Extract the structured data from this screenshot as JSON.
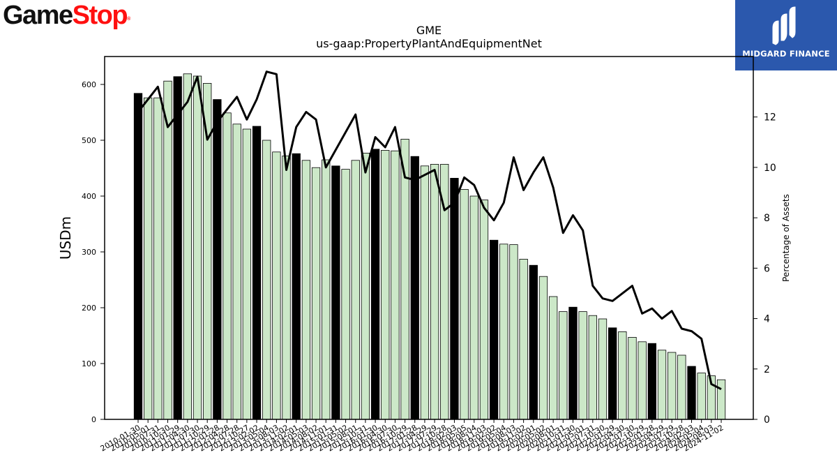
{
  "logos": {
    "left": {
      "part1": "Game",
      "part2": "Stop",
      "mark": "®"
    },
    "right": {
      "text": "MIDGARD FINANCE",
      "icon": "midgard-m-icon"
    }
  },
  "chart_data": {
    "type": "bar",
    "title": "GME",
    "subtitle": "us-gaap:PropertyPlantAndEquipmentNet",
    "ylabel": "USDm",
    "y2label": "Percentage of Assets",
    "ylim": [
      0,
      650
    ],
    "y2lim": [
      0,
      14.4
    ],
    "yticks": [
      0,
      100,
      200,
      300,
      400,
      500,
      600
    ],
    "y2ticks": [
      0,
      2,
      4,
      6,
      8,
      10,
      12
    ],
    "grid": false,
    "colors": {
      "annual_bar": "#000000",
      "quarter_bar": "#cce8c8",
      "line": "#000000"
    },
    "x": [
      "2010-01-30",
      "2010-05-01",
      "2010-07-31",
      "2010-10-30",
      "2011-01-29",
      "2011-04-30",
      "2011-07-30",
      "2011-10-29",
      "2012-01-28",
      "2012-04-28",
      "2012-07-28",
      "2012-10-27",
      "2013-02-02",
      "2013-05-04",
      "2013-08-03",
      "2013-11-02",
      "2014-02-01",
      "2014-05-03",
      "2014-08-02",
      "2014-11-01",
      "2015-01-31",
      "2015-05-02",
      "2015-08-01",
      "2015-10-31",
      "2016-01-30",
      "2016-04-30",
      "2016-07-30",
      "2016-10-29",
      "2017-01-28",
      "2017-04-29",
      "2017-07-29",
      "2017-10-28",
      "2018-02-03",
      "2018-05-05",
      "2018-08-04",
      "2018-11-03",
      "2019-02-02",
      "2019-05-04",
      "2019-08-03",
      "2019-11-02",
      "2020-02-01",
      "2020-05-02",
      "2020-08-01",
      "2020-10-31",
      "2021-01-30",
      "2021-05-01",
      "2021-07-31",
      "2021-10-30",
      "2022-01-29",
      "2022-04-30",
      "2022-07-30",
      "2022-10-29",
      "2023-01-28",
      "2023-04-29",
      "2023-07-29",
      "2023-10-28",
      "2024-02-03",
      "2024-05-04",
      "2024-08-03",
      "2024-11-02"
    ],
    "xticklabels": [
      "2010-01-30",
      "2010-05-01",
      "2010-07-31",
      "2010-10-30",
      "2011-01-29",
      "2011-04-30",
      "2011-07-30",
      "2011-10-29",
      "2012-01-28",
      "2012-04-28",
      "2012-07-28",
      "2012-10-27",
      "2013-02-02",
      "2013-05-04",
      "2013-08-03",
      "2013-11-02",
      "2014-02-01",
      "2014-05-03",
      "2014-08-02",
      "2014-11-01",
      "2015-01-31",
      "2015-05-02",
      "2015-08-01",
      "2015-10-31",
      "2016-01-30",
      "2016-04-30",
      "2016-07-30",
      "2016-10-29",
      "2017-01-28",
      "2017-04-29",
      "2017-07-29",
      "2017-10-28",
      "2018-02-03",
      "2018-05-05",
      "2018-08-04",
      "2018-11-03",
      "2019-02-02",
      "2019-05-04",
      "2019-08-03",
      "2019-11-02",
      "2020-02-01",
      "2020-05-02",
      "2020-08-01",
      "2020-10-31",
      "2021-01-30",
      "2021-05-01",
      "2021-07-31",
      "2021-10-30",
      "2022-01-29",
      "2022-04-30",
      "2022-07-30",
      "2022-10-29",
      "2023-01-28",
      "2023-04-29",
      "2023-07-29",
      "2023-10-28",
      "2024-02-03",
      "2024-05-04",
      "2024-08-03",
      "2024-11-02"
    ],
    "annual": [
      true,
      false,
      false,
      false,
      true,
      false,
      false,
      false,
      true,
      false,
      false,
      false,
      true,
      false,
      false,
      false,
      true,
      false,
      false,
      false,
      true,
      false,
      false,
      false,
      true,
      false,
      false,
      false,
      true,
      false,
      false,
      false,
      true,
      false,
      false,
      false,
      true,
      false,
      false,
      false,
      true,
      false,
      false,
      false,
      true,
      false,
      false,
      false,
      true,
      false,
      false,
      false,
      true,
      false,
      false,
      false,
      true,
      false,
      false,
      false
    ],
    "series": [
      {
        "values": [
          584,
          576,
          576,
          606,
          614,
          619,
          615,
          602,
          573,
          549,
          529,
          520,
          525,
          500,
          479,
          472,
          476,
          464,
          451,
          465,
          454,
          448,
          464,
          477,
          484,
          482,
          481,
          502,
          471,
          454,
          457,
          457,
          432,
          412,
          400,
          393,
          321,
          314,
          313,
          287,
          276,
          256,
          220,
          193,
          201,
          193,
          186,
          180,
          164,
          157,
          147,
          139,
          136,
          124,
          120,
          115,
          95,
          83,
          78,
          71
        ]
      },
      {
        "values": [
          12.2,
          12.7,
          13.2,
          11.6,
          12.1,
          12.6,
          13.6,
          11.1,
          11.8,
          12.3,
          12.8,
          11.9,
          12.7,
          13.8,
          13.7,
          9.9,
          11.6,
          12.2,
          11.9,
          10.0,
          10.7,
          11.4,
          12.1,
          9.8,
          11.2,
          10.8,
          11.6,
          9.6,
          9.5,
          9.7,
          9.9,
          8.3,
          8.6,
          9.6,
          9.3,
          8.4,
          7.9,
          8.6,
          10.4,
          9.1,
          9.8,
          10.4,
          9.2,
          7.4,
          8.1,
          7.5,
          5.3,
          4.8,
          4.7,
          5.0,
          5.3,
          4.2,
          4.4,
          4.0,
          4.3,
          3.6,
          3.5,
          3.2,
          1.4,
          1.2
        ]
      }
    ]
  }
}
